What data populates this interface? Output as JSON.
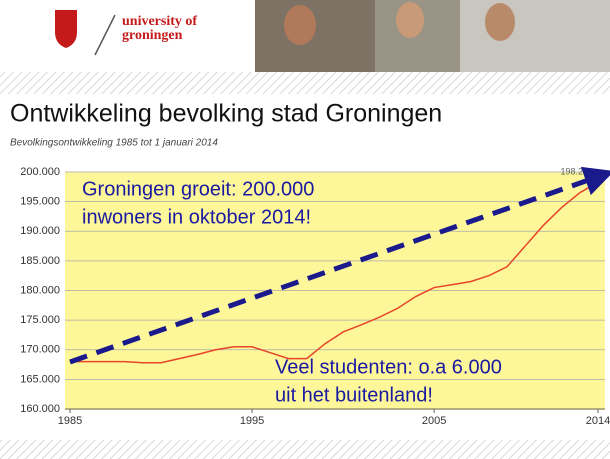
{
  "header": {
    "logo_line1": "university of",
    "logo_line2": "groningen"
  },
  "chart_data": {
    "type": "line",
    "title": "Ontwikkeling bevolking stad Groningen",
    "subtitle": "Bevolkingsontwikkeling 1985 tot 1 januari 2014",
    "x": [
      1985,
      1986,
      1987,
      1988,
      1989,
      1990,
      1991,
      1992,
      1993,
      1994,
      1995,
      1996,
      1997,
      1998,
      1999,
      2000,
      2001,
      2002,
      2003,
      2004,
      2005,
      2006,
      2007,
      2008,
      2009,
      2010,
      2011,
      2012,
      2013,
      2014
    ],
    "series": [
      {
        "color": "#e8442a",
        "values": [
          168000,
          168000,
          168000,
          168000,
          167800,
          167800,
          168500,
          169200,
          170000,
          170500,
          170500,
          169500,
          168500,
          168500,
          171000,
          173000,
          174200,
          175500,
          177000,
          179000,
          180500,
          181000,
          181500,
          182500,
          184000,
          187500,
          191000,
          194000,
          196500,
          198281
        ],
        "value_labels": [
          null,
          null,
          null,
          null,
          null,
          null,
          null,
          null,
          null,
          null,
          null,
          null,
          null,
          null,
          null,
          null,
          null,
          null,
          null,
          null,
          null,
          null,
          null,
          null,
          null,
          null,
          null,
          null,
          null,
          "198.281"
        ]
      }
    ],
    "xlim": [
      1985,
      2014
    ],
    "xticks": [
      1985,
      1995,
      2005,
      2014
    ],
    "ylim": [
      160000,
      200000
    ],
    "yticks": [
      {
        "value": 160000,
        "label": "160.000"
      },
      {
        "value": 165000,
        "label": "165.000"
      },
      {
        "value": 170000,
        "label": "170.000"
      },
      {
        "value": 175000,
        "label": "175.000"
      },
      {
        "value": 180000,
        "label": "180.000"
      },
      {
        "value": 185000,
        "label": "185.000"
      },
      {
        "value": 190000,
        "label": "190.000"
      },
      {
        "value": 195000,
        "label": "195.000"
      },
      {
        "value": 200000,
        "label": "200.000"
      }
    ],
    "grid": true,
    "annotations": [
      {
        "lines": [
          "Groningen groeit: 200.000",
          "inwoners in oktober 2014!"
        ]
      },
      {
        "lines": [
          "Veel studenten: o.a 6.000",
          "uit het buitenland!"
        ]
      }
    ]
  }
}
